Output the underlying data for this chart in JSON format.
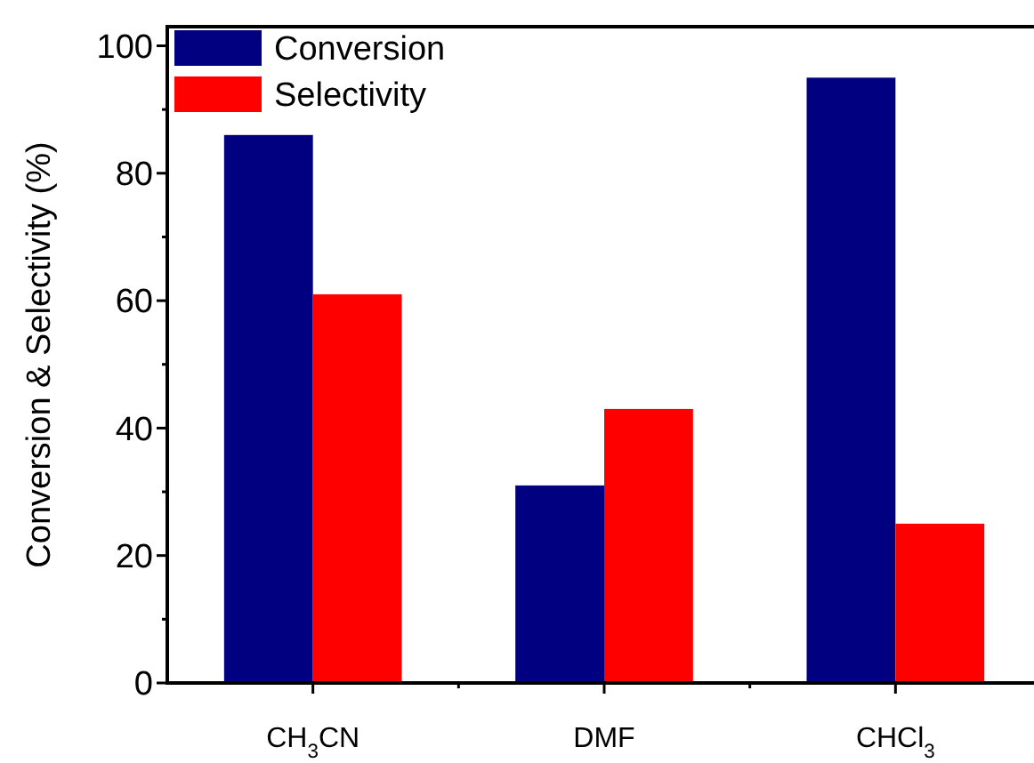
{
  "chart_data": {
    "type": "bar",
    "ylabel": "Conversion & Selectivity (%)",
    "categories": [
      "CH$_{3}$CN",
      "DMF",
      "CHCl$_{3}$"
    ],
    "series": [
      {
        "name": "Conversion",
        "color": "#000080",
        "values": [
          86,
          31,
          95
        ]
      },
      {
        "name": "Selectivity",
        "color": "#ff0000",
        "values": [
          61,
          43,
          25
        ]
      }
    ],
    "ylim": [
      0,
      103
    ],
    "yticks": [
      0,
      {
        "value": 10,
        "label": null
      },
      20,
      {
        "value": 30,
        "label": null
      },
      40,
      {
        "value": 50,
        "label": null
      },
      60,
      {
        "value": 70,
        "label": null
      },
      80,
      {
        "value": 90,
        "label": null
      },
      100
    ],
    "grid": false,
    "legend": "top left"
  }
}
